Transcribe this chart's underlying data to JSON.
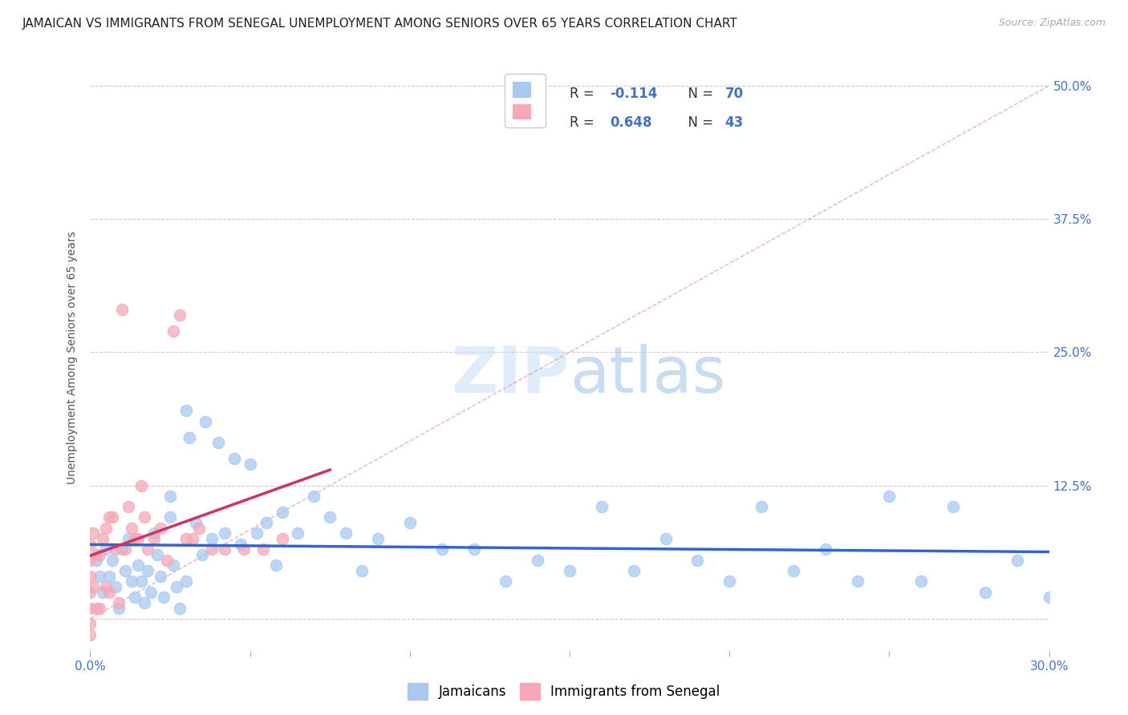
{
  "title": "JAMAICAN VS IMMIGRANTS FROM SENEGAL UNEMPLOYMENT AMONG SENIORS OVER 65 YEARS CORRELATION CHART",
  "source": "Source: ZipAtlas.com",
  "ylabel": "Unemployment Among Seniors over 65 years",
  "xlim": [
    0.0,
    0.3
  ],
  "ylim": [
    -0.03,
    0.52
  ],
  "blue_color": "#a8c8f0",
  "pink_color": "#f4a8b8",
  "blue_line_color": "#3366cc",
  "pink_line_color": "#cc3366",
  "diag_color": "#e0a0b0",
  "text_color": "#4472c4",
  "grid_color": "#cccccc",
  "background_color": "#ffffff",
  "title_fontsize": 11,
  "axis_label_fontsize": 10,
  "tick_fontsize": 11,
  "blue_points_x": [
    0.002,
    0.003,
    0.004,
    0.005,
    0.006,
    0.007,
    0.008,
    0.009,
    0.01,
    0.011,
    0.012,
    0.013,
    0.014,
    0.015,
    0.016,
    0.017,
    0.018,
    0.019,
    0.02,
    0.021,
    0.022,
    0.023,
    0.025,
    0.026,
    0.027,
    0.028,
    0.03,
    0.031,
    0.033,
    0.035,
    0.036,
    0.038,
    0.04,
    0.042,
    0.045,
    0.047,
    0.05,
    0.052,
    0.055,
    0.058,
    0.06,
    0.065,
    0.07,
    0.075,
    0.08,
    0.085,
    0.09,
    0.1,
    0.11,
    0.12,
    0.13,
    0.14,
    0.15,
    0.16,
    0.17,
    0.18,
    0.19,
    0.2,
    0.21,
    0.22,
    0.23,
    0.24,
    0.25,
    0.26,
    0.27,
    0.28,
    0.29,
    0.3,
    0.025,
    0.03
  ],
  "blue_points_y": [
    0.055,
    0.04,
    0.025,
    0.065,
    0.04,
    0.055,
    0.03,
    0.01,
    0.065,
    0.045,
    0.075,
    0.035,
    0.02,
    0.05,
    0.035,
    0.015,
    0.045,
    0.025,
    0.08,
    0.06,
    0.04,
    0.02,
    0.095,
    0.05,
    0.03,
    0.01,
    0.195,
    0.17,
    0.09,
    0.06,
    0.185,
    0.075,
    0.165,
    0.08,
    0.15,
    0.07,
    0.145,
    0.08,
    0.09,
    0.05,
    0.1,
    0.08,
    0.115,
    0.095,
    0.08,
    0.045,
    0.075,
    0.09,
    0.065,
    0.065,
    0.035,
    0.055,
    0.045,
    0.105,
    0.045,
    0.075,
    0.055,
    0.035,
    0.105,
    0.045,
    0.065,
    0.035,
    0.115,
    0.035,
    0.105,
    0.025,
    0.055,
    0.02,
    0.115,
    0.035
  ],
  "pink_points_x": [
    0.0,
    0.0,
    0.0,
    0.0,
    0.0,
    0.0,
    0.0,
    0.001,
    0.001,
    0.002,
    0.002,
    0.003,
    0.003,
    0.004,
    0.005,
    0.005,
    0.006,
    0.006,
    0.007,
    0.008,
    0.009,
    0.01,
    0.011,
    0.012,
    0.013,
    0.014,
    0.015,
    0.016,
    0.017,
    0.018,
    0.02,
    0.022,
    0.024,
    0.026,
    0.028,
    0.03,
    0.032,
    0.034,
    0.038,
    0.042,
    0.048,
    0.054,
    0.06
  ],
  "pink_points_y": [
    0.07,
    0.055,
    0.04,
    0.025,
    0.01,
    -0.005,
    -0.015,
    0.08,
    0.03,
    0.06,
    0.01,
    0.06,
    0.01,
    0.075,
    0.085,
    0.03,
    0.095,
    0.025,
    0.095,
    0.065,
    0.015,
    0.29,
    0.065,
    0.105,
    0.085,
    0.075,
    0.075,
    0.125,
    0.095,
    0.065,
    0.075,
    0.085,
    0.055,
    0.27,
    0.285,
    0.075,
    0.075,
    0.085,
    0.065,
    0.065,
    0.065,
    0.065,
    0.075
  ],
  "legend_label_blue": "Jamaicans",
  "legend_label_pink": "Immigrants from Senegal",
  "legend_r_blue": "-0.114",
  "legend_n_blue": "70",
  "legend_r_pink": "0.648",
  "legend_n_pink": "43"
}
